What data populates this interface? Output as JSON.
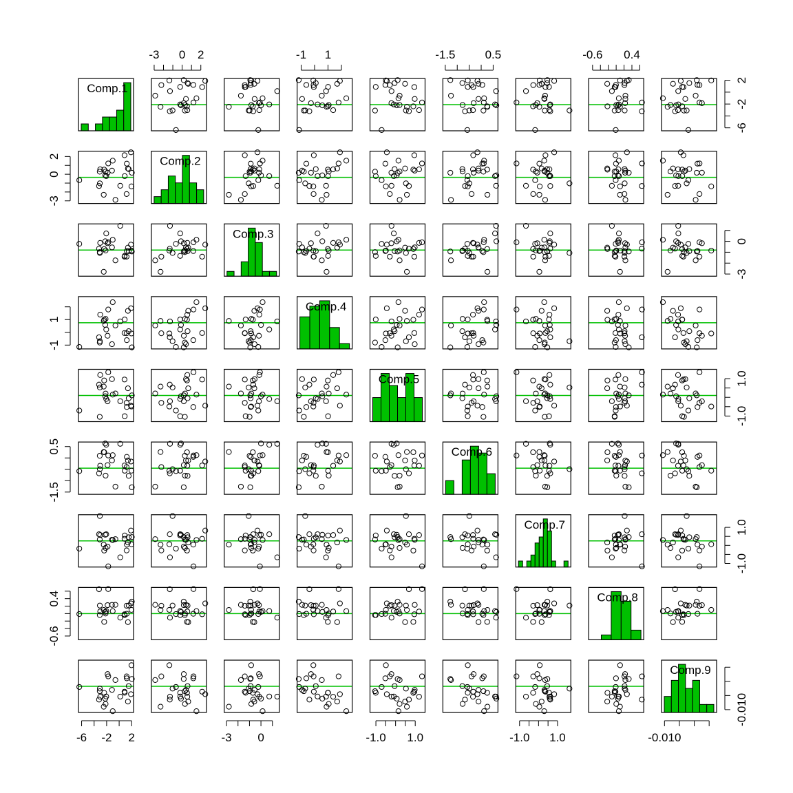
{
  "chart_data": {
    "type": "scatter",
    "variables": [
      "Comp.1",
      "Comp.2",
      "Comp.3",
      "Comp.4",
      "Comp.5",
      "Comp.6",
      "Comp.7",
      "Comp.8",
      "Comp.9"
    ],
    "ranges": [
      [
        -6.5,
        2.3
      ],
      [
        -3.3,
        2.6
      ],
      [
        -3.2,
        1.6
      ],
      [
        -1.3,
        2.8
      ],
      [
        -1.3,
        1.5
      ],
      [
        -1.6,
        0.7
      ],
      [
        -1.2,
        1.7
      ],
      [
        -0.7,
        0.7
      ],
      [
        -0.012,
        0.025
      ]
    ],
    "axis_ticks": [
      {
        "values": [
          -6,
          -4,
          -2,
          0,
          2
        ],
        "labels": [
          "-6",
          "",
          "-2",
          "",
          "2"
        ]
      },
      {
        "values": [
          -3,
          -2,
          -1,
          0,
          1,
          2
        ],
        "labels": [
          "-3",
          "",
          "",
          "0",
          "",
          "2"
        ]
      },
      {
        "values": [
          -3,
          -2,
          -1,
          0,
          1
        ],
        "labels": [
          "-3",
          "",
          "",
          "0",
          ""
        ]
      },
      {
        "values": [
          -1,
          0,
          1,
          2
        ],
        "labels": [
          "-1",
          "",
          "1",
          ""
        ]
      },
      {
        "values": [
          -1.0,
          -0.5,
          0.0,
          0.5,
          1.0
        ],
        "labels": [
          "-1.0",
          "",
          "",
          "",
          "1.0"
        ]
      },
      {
        "values": [
          -1.5,
          -1.0,
          -0.5,
          0.0,
          0.5
        ],
        "labels": [
          "-1.5",
          "",
          "",
          "",
          "0.5"
        ]
      },
      {
        "values": [
          -1.0,
          -0.5,
          0.0,
          0.5,
          1.0
        ],
        "labels": [
          "-1.0",
          "",
          "",
          "",
          "1.0"
        ]
      },
      {
        "values": [
          -0.6,
          -0.4,
          -0.2,
          0.0,
          0.2,
          0.4,
          0.6
        ],
        "labels": [
          "-0.6",
          "",
          "",
          "",
          "",
          "0.4",
          ""
        ]
      },
      {
        "values": [
          -0.01,
          0.0,
          0.01,
          0.02
        ],
        "labels": [
          "-0.010",
          "",
          "",
          ""
        ]
      }
    ],
    "histograms": [
      [
        1,
        0,
        1,
        2,
        2,
        3,
        7
      ],
      [
        1,
        2,
        4,
        3,
        7,
        3,
        2
      ],
      [
        1,
        0,
        3,
        10,
        7,
        1,
        1
      ],
      [
        6,
        8,
        9,
        4,
        1
      ],
      [
        2,
        4,
        3,
        2,
        4,
        2
      ],
      [
        2,
        0,
        5,
        7,
        6,
        3
      ],
      [
        1,
        0,
        1,
        2,
        4,
        5,
        8,
        6,
        1,
        0,
        0,
        1
      ],
      [
        0,
        1,
        10,
        8,
        2
      ],
      [
        2,
        4,
        6,
        3,
        4,
        1,
        1
      ]
    ],
    "colors": {
      "hist": "#00c000",
      "line": "#00c000",
      "point": "#000000"
    },
    "grid": false,
    "legend": "none"
  }
}
